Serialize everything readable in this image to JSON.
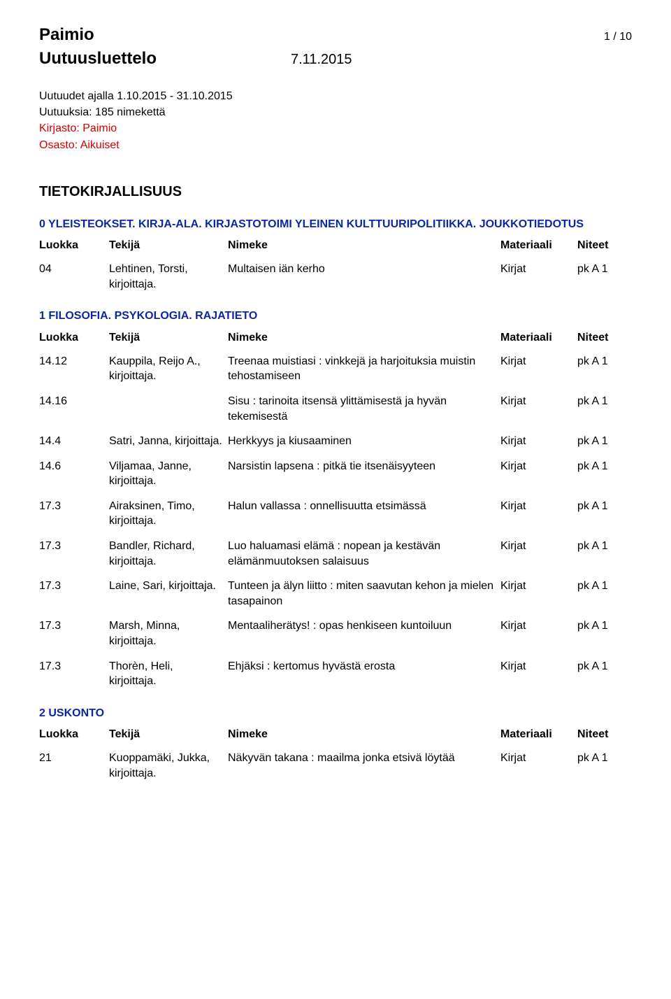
{
  "header": {
    "title": "Paimio",
    "pagination": "1 / 10",
    "subtitle": "Uutuusluettelo",
    "date": "7.11.2015"
  },
  "meta": {
    "line1": "Uutuudet ajalla 1.10.2015 - 31.10.2015",
    "line2": "Uutuuksia: 185 nimekettä",
    "line3": "Kirjasto: Paimio",
    "line4": "Osasto: Aikuiset"
  },
  "mainSection": "TIETOKIRJALLISUUS",
  "columns": {
    "luokka": "Luokka",
    "tekija": "Tekijä",
    "nimeke": "Nimeke",
    "materiaali": "Materiaali",
    "niteet": "Niteet"
  },
  "sections": [
    {
      "title": "0 YLEISTEOKSET. KIRJA-ALA. KIRJASTOTOIMI YLEINEN KULTTUURIPOLITIIKKA. JOUKKOTIEDOTUS",
      "rows": [
        {
          "luokka": "04",
          "tekija": "Lehtinen, Torsti, kirjoittaja.",
          "nimeke": "Multaisen iän kerho",
          "mat": "Kirjat",
          "nit": "pk A 1"
        }
      ]
    },
    {
      "title": "1 FILOSOFIA. PSYKOLOGIA. RAJATIETO",
      "rows": [
        {
          "luokka": "14.12",
          "tekija": "Kauppila, Reijo A., kirjoittaja.",
          "nimeke": "Treenaa muistiasi : vinkkejä ja harjoituksia muistin tehostamiseen",
          "mat": "Kirjat",
          "nit": "pk A 1"
        },
        {
          "luokka": "14.16",
          "tekija": "",
          "nimeke": "Sisu : tarinoita itsensä ylittämisestä ja hyvän tekemisestä",
          "mat": "Kirjat",
          "nit": "pk A 1"
        },
        {
          "luokka": "14.4",
          "tekija": "Satri, Janna, kirjoittaja.",
          "nimeke": "Herkkyys ja kiusaaminen",
          "mat": "Kirjat",
          "nit": "pk A 1"
        },
        {
          "luokka": "14.6",
          "tekija": "Viljamaa, Janne, kirjoittaja.",
          "nimeke": "Narsistin lapsena : pitkä tie itsenäisyyteen",
          "mat": "Kirjat",
          "nit": "pk A 1"
        },
        {
          "luokka": "17.3",
          "tekija": "Airaksinen, Timo, kirjoittaja.",
          "nimeke": "Halun vallassa : onnellisuutta etsimässä",
          "mat": "Kirjat",
          "nit": "pk A 1"
        },
        {
          "luokka": "17.3",
          "tekija": "Bandler, Richard, kirjoittaja.",
          "nimeke": "Luo haluamasi elämä : nopean ja kestävän elämänmuutoksen salaisuus",
          "mat": "Kirjat",
          "nit": "pk A 1"
        },
        {
          "luokka": "17.3",
          "tekija": "Laine, Sari, kirjoittaja.",
          "nimeke": "Tunteen ja älyn liitto : miten saavutan kehon ja mielen tasapainon",
          "mat": "Kirjat",
          "nit": "pk A 1"
        },
        {
          "luokka": "17.3",
          "tekija": "Marsh, Minna, kirjoittaja.",
          "nimeke": "Mentaaliherätys! : opas henkiseen kuntoiluun",
          "mat": "Kirjat",
          "nit": "pk A 1"
        },
        {
          "luokka": "17.3",
          "tekija": "Thorèn, Heli, kirjoittaja.",
          "nimeke": "Ehjäksi : kertomus hyvästä erosta",
          "mat": "Kirjat",
          "nit": "pk A 1"
        }
      ]
    },
    {
      "title": "2 USKONTO",
      "rows": [
        {
          "luokka": "21",
          "tekija": "Kuoppamäki, Jukka, kirjoittaja.",
          "nimeke": "Näkyvän takana : maailma jonka etsivä löytää",
          "mat": "Kirjat",
          "nit": "pk A 1"
        }
      ]
    }
  ]
}
